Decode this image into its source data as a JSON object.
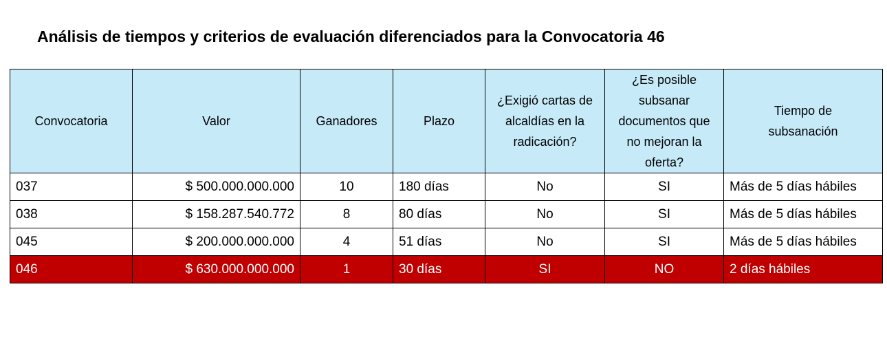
{
  "title": "Análisis de tiempos y criterios de evaluación diferenciados para la Convocatoria 46",
  "colors": {
    "header_bg": "#c7eaf9",
    "highlight_bg": "#c00000",
    "highlight_text": "#ffffff"
  },
  "table": {
    "headers": {
      "convocatoria": "Convocatoria",
      "valor": "Valor",
      "ganadores": "Ganadores",
      "plazo": "Plazo",
      "cartas": "¿Exigió cartas de alcaldías en la radicación?",
      "subsanar": "¿Es posible subsanar documentos que no mejoran la oferta?",
      "tiempo": "Tiempo de subsanación"
    },
    "rows": [
      {
        "convocatoria": "037",
        "valor": "$ 500.000.000.000",
        "ganadores": "10",
        "plazo": "180 días",
        "cartas": "No",
        "subsanar": "SI",
        "tiempo": "Más de 5 días hábiles"
      },
      {
        "convocatoria": "038",
        "valor": "$ 158.287.540.772",
        "ganadores": "8",
        "plazo": "80 días",
        "cartas": "No",
        "subsanar": "SI",
        "tiempo": "Más de 5 días hábiles"
      },
      {
        "convocatoria": "045",
        "valor": "$ 200.000.000.000",
        "ganadores": "4",
        "plazo": "51 días",
        "cartas": "No",
        "subsanar": "SI",
        "tiempo": "Más de 5 días hábiles"
      },
      {
        "convocatoria": "046",
        "valor": "$ 630.000.000.000",
        "ganadores": "1",
        "plazo": "30 días",
        "cartas": "SI",
        "subsanar": "NO",
        "tiempo": "2 días hábiles"
      }
    ]
  }
}
